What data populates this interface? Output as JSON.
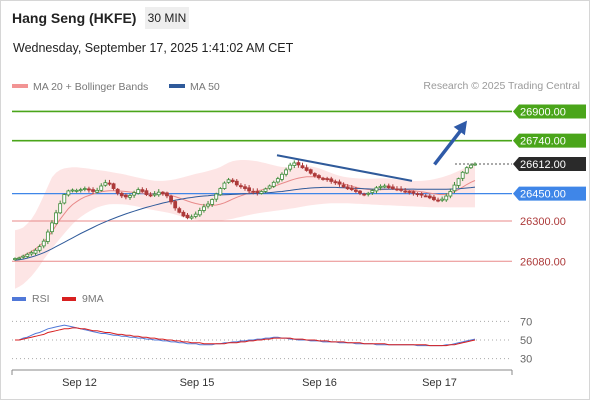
{
  "header": {
    "title": "Hang Seng (HKFE)",
    "timeframe": "30 MIN",
    "datetime": "Wednesday, September 17, 2025 1:41:02 AM CET",
    "copyright": "Research © 2025 Trading Central"
  },
  "colors": {
    "up": "#3f8c3a",
    "down": "#ad3a3a",
    "bollinger_fill": "#fcdcdc",
    "ma20": "#e88a8a",
    "ma50": "#2f5a9a",
    "resistance": "#4aa51a",
    "pivot": "#3f86e8",
    "support": "#e88a8a",
    "last_price": "#2a2a2a",
    "trendline": "#2f5a9a",
    "arrow": "#2f5aa8",
    "rsi": "#5078d8",
    "rsi_ma": "#d82020"
  },
  "chart_data": [
    {
      "type": "candlestick",
      "legend": [
        {
          "name": "MA 20 + Bollinger Bands",
          "color": "#f29494"
        },
        {
          "name": "MA 50",
          "color": "#2f5a9a"
        }
      ],
      "ylim": [
        25950,
        26990
      ],
      "x_labels": [
        "Sep 12",
        "Sep 15",
        "Sep 16",
        "Sep 17"
      ],
      "x_label_positions": [
        13.5,
        37,
        61.5,
        85.5
      ],
      "levels": [
        {
          "name": "resistance-2",
          "value": 26900.0,
          "label": "26900.00",
          "kind": "resistance"
        },
        {
          "name": "resistance-1",
          "value": 26740.0,
          "label": "26740.00",
          "kind": "resistance"
        },
        {
          "name": "last-price",
          "value": 26612.0,
          "label": "26612.00",
          "kind": "last"
        },
        {
          "name": "pivot",
          "value": 26450.0,
          "label": "26450.00",
          "kind": "pivot"
        },
        {
          "name": "support-1",
          "value": 26300.0,
          "label": "26300.00",
          "kind": "support"
        },
        {
          "name": "support-2",
          "value": 26080.0,
          "label": "26080.00",
          "kind": "support"
        }
      ],
      "trendline": [
        [
          53,
          26660
        ],
        [
          80,
          26520
        ]
      ],
      "arrow": [
        [
          84.5,
          26610
        ],
        [
          91,
          26850
        ]
      ],
      "prices": [
        26095,
        26098,
        26108,
        26118,
        26128,
        26140,
        26160,
        26190,
        26240,
        26290,
        26345,
        26395,
        26445,
        26465,
        26470,
        26468,
        26472,
        26478,
        26470,
        26462,
        26468,
        26492,
        26510,
        26502,
        26478,
        26452,
        26438,
        26432,
        26440,
        26455,
        26472,
        26462,
        26445,
        26440,
        26448,
        26458,
        26450,
        26438,
        26405,
        26372,
        26348,
        26328,
        26318,
        26323,
        26338,
        26358,
        26378,
        26393,
        26418,
        26448,
        26478,
        26508,
        26526,
        26516,
        26498,
        26488,
        26478,
        26465,
        26460,
        26455,
        26462,
        26476,
        26492,
        26512,
        26532,
        26556,
        26580,
        26606,
        26618,
        26607,
        26592,
        26577,
        26562,
        26547,
        26537,
        26532,
        26527,
        26517,
        26512,
        26502,
        26487,
        26477,
        26472,
        26462,
        26452,
        26447,
        26452,
        26467,
        26482,
        26490,
        26492,
        26483,
        26478,
        26473,
        26468,
        26462,
        26457,
        26452,
        26447,
        26442,
        26437,
        26427,
        26417,
        26412,
        26420,
        26437,
        26462,
        26497,
        26532,
        26567,
        26592,
        26606,
        26612
      ],
      "ma20": [
        26090,
        26100,
        26110,
        26122,
        26134,
        26148,
        26165,
        26186,
        26212,
        26242,
        26276,
        26310,
        26340,
        26368,
        26390,
        26406,
        26420,
        26432,
        26440,
        26448,
        26455,
        26460,
        26464,
        26466,
        26466,
        26465,
        26464,
        26462,
        26459,
        26457,
        26455,
        26453,
        26451,
        26450,
        26450,
        26449,
        26448,
        26445,
        26440,
        26434,
        26426,
        26418,
        26410,
        26402,
        26396,
        26391,
        26388,
        26386,
        26386,
        26388,
        26393,
        26400,
        26410,
        26420,
        26430,
        26438,
        26446,
        26453,
        26460,
        26465,
        26470,
        26476,
        26482,
        26490,
        26498,
        26506,
        26514,
        26522,
        26529,
        26535,
        26539,
        26542,
        26543,
        26542,
        26540,
        26536,
        26531,
        26525,
        26518,
        26511,
        26504,
        26497,
        26491,
        26485,
        26480,
        26476,
        26473,
        26471,
        26471,
        26472,
        26473,
        26474,
        26474,
        26474,
        26473,
        26471,
        26469,
        26466,
        26463,
        26460,
        26457,
        26453,
        26449,
        26446,
        26445,
        26447,
        26452,
        26460,
        26472,
        26486,
        26500,
        26512,
        26522
      ],
      "bb_upper": [
        26250,
        26255,
        26265,
        26285,
        26310,
        26345,
        26390,
        26440,
        26490,
        26540,
        26565,
        26580,
        26588,
        26592,
        26594,
        26594,
        26592,
        26590,
        26587,
        26583,
        26580,
        26577,
        26574,
        26570,
        26566,
        26562,
        26558,
        26553,
        26548,
        26543,
        26538,
        26533,
        26528,
        26524,
        26521,
        26520,
        26520,
        26522,
        26525,
        26529,
        26534,
        26540,
        26546,
        26552,
        26558,
        26563,
        26568,
        26574,
        26580,
        26587,
        26596,
        26608,
        26620,
        26628,
        26632,
        26634,
        26634,
        26633,
        26630,
        26627,
        26622,
        26617,
        26611,
        26605,
        26600,
        26596,
        26594,
        26594,
        26596,
        26598,
        26600,
        26600,
        26599,
        26595,
        26589,
        26581,
        26572,
        26563,
        26555,
        26548,
        26543,
        26539,
        26536,
        26534,
        26533,
        26532,
        26532,
        26532,
        26533,
        26534,
        26534,
        26533,
        26531,
        26528,
        26525,
        26522,
        26520,
        26519,
        26519,
        26520,
        26522,
        26525,
        26529,
        26534,
        26540,
        26547,
        26555,
        26564,
        26574,
        26585,
        26597,
        26610,
        26622
      ],
      "bb_lower": [
        25930,
        25940,
        25955,
        25975,
        25998,
        26025,
        26055,
        26090,
        26120,
        26150,
        26178,
        26205,
        26232,
        26258,
        26282,
        26304,
        26322,
        26338,
        26352,
        26364,
        26374,
        26382,
        26388,
        26392,
        26393,
        26393,
        26392,
        26390,
        26387,
        26383,
        26378,
        26373,
        26368,
        26363,
        26359,
        26355,
        26351,
        26347,
        26342,
        26336,
        26329,
        26322,
        26316,
        26311,
        26306,
        26303,
        26301,
        26300,
        26300,
        26301,
        26302,
        26305,
        26309,
        26313,
        26318,
        26323,
        26328,
        26333,
        26338,
        26342,
        26346,
        26349,
        26352,
        26355,
        26358,
        26361,
        26364,
        26368,
        26371,
        26375,
        26379,
        26383,
        26386,
        26389,
        26392,
        26394,
        26396,
        26397,
        26398,
        26398,
        26398,
        26397,
        26396,
        26395,
        26394,
        26393,
        26392,
        26390,
        26389,
        26388,
        26387,
        26386,
        26385,
        26384,
        26383,
        26382,
        26381,
        26380,
        26379,
        26378,
        26377,
        26376,
        26375,
        26375,
        26375,
        26375,
        26375,
        26375,
        26375,
        26375,
        26375,
        26375,
        26375
      ],
      "ma50": [
        26085,
        26088,
        26092,
        26097,
        26103,
        26110,
        26118,
        26127,
        26137,
        26148,
        26160,
        26172,
        26184,
        26196,
        26208,
        26220,
        26232,
        26243,
        26254,
        26265,
        26276,
        26286,
        26296,
        26305,
        26314,
        26323,
        26331,
        26339,
        26347,
        26354,
        26361,
        26368,
        26375,
        26381,
        26387,
        26393,
        26399,
        26404,
        26409,
        26414,
        26418,
        26422,
        26426,
        26429,
        26432,
        26435,
        26437,
        26439,
        26441,
        26442,
        26443,
        26444,
        26445,
        26446,
        26447,
        26448,
        26449,
        26450,
        26451,
        26452,
        26453,
        26454,
        26456,
        26458,
        26460,
        26462,
        26465,
        26468,
        26471,
        26474,
        26477,
        26479,
        26481,
        26482,
        26483,
        26484,
        26484,
        26484,
        26484,
        26483,
        26482,
        26481,
        26480,
        26479,
        26478,
        26477,
        26476,
        26475,
        26475,
        26475,
        26475,
        26475,
        26475,
        26475,
        26475,
        26475,
        26475,
        26475,
        26474,
        26474,
        26474,
        26474,
        26474,
        26474,
        26474,
        26474,
        26475,
        26476,
        26477,
        26479,
        26481,
        26483,
        26486
      ]
    },
    {
      "type": "line",
      "legend": [
        {
          "name": "RSI",
          "color": "#5078d8"
        },
        {
          "name": "9MA",
          "color": "#d82020"
        }
      ],
      "ylim": [
        20,
        80
      ],
      "y_ticks": [
        70,
        50,
        30
      ],
      "rsi": [
        50,
        50,
        52,
        53,
        55,
        57,
        58,
        60,
        62,
        63,
        64,
        65,
        66,
        65,
        64,
        63,
        62,
        61,
        60,
        59,
        58,
        57,
        57,
        56,
        55,
        55,
        54,
        54,
        53,
        53,
        52,
        52,
        51,
        51,
        50,
        50,
        49,
        49,
        48,
        48,
        47,
        47,
        46,
        46,
        46,
        45,
        45,
        45,
        45,
        46,
        46,
        47,
        47,
        48,
        48,
        49,
        49,
        50,
        50,
        51,
        51,
        52,
        52,
        53,
        53,
        52,
        52,
        51,
        51,
        50,
        50,
        50,
        49,
        49,
        49,
        48,
        48,
        48,
        48,
        47,
        47,
        47,
        47,
        46,
        46,
        46,
        46,
        46,
        45,
        45,
        45,
        45,
        45,
        45,
        45,
        45,
        45,
        45,
        44,
        44,
        44,
        44,
        44,
        44,
        44,
        45,
        45,
        46,
        47,
        48,
        49,
        50,
        51
      ],
      "ma9": [
        50,
        50,
        51,
        52,
        53,
        54,
        55,
        56,
        58,
        59,
        60,
        61,
        62,
        62,
        63,
        63,
        62,
        62,
        61,
        60,
        60,
        59,
        58,
        58,
        57,
        56,
        56,
        55,
        55,
        54,
        54,
        53,
        53,
        52,
        52,
        51,
        51,
        50,
        50,
        49,
        49,
        48,
        48,
        47,
        47,
        47,
        46,
        46,
        46,
        46,
        46,
        46,
        47,
        47,
        47,
        48,
        48,
        49,
        49,
        50,
        50,
        51,
        51,
        52,
        52,
        52,
        52,
        52,
        51,
        51,
        51,
        50,
        50,
        50,
        49,
        49,
        49,
        48,
        48,
        48,
        48,
        47,
        47,
        47,
        47,
        46,
        46,
        46,
        46,
        46,
        46,
        45,
        45,
        45,
        45,
        45,
        45,
        45,
        45,
        45,
        45,
        44,
        44,
        44,
        44,
        44,
        45,
        45,
        46,
        47,
        48,
        49,
        50
      ]
    }
  ]
}
